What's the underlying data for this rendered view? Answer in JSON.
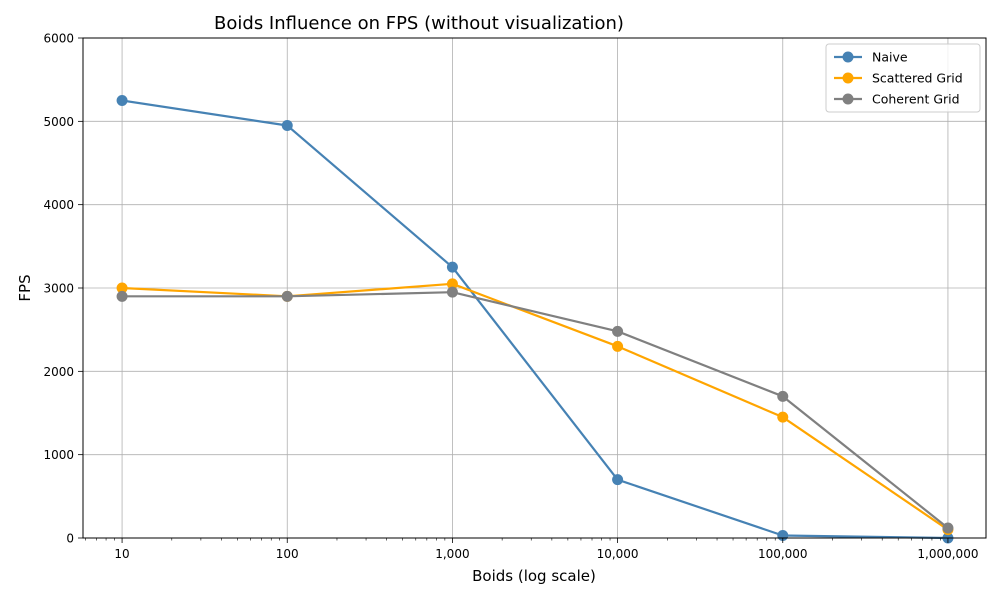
{
  "chart_data": {
    "type": "line",
    "title": "Boids Influence on FPS (without visualization)",
    "xlabel": "Boids (log scale)",
    "ylabel": "FPS",
    "x_scale": "log",
    "x": [
      10,
      100,
      1000,
      10000,
      100000,
      1000000
    ],
    "x_tick_labels": [
      "10",
      "100",
      "1,000",
      "10,000",
      "100,000",
      "1,000,000"
    ],
    "xlim": [
      5.8,
      1700000
    ],
    "ylim": [
      0,
      6000
    ],
    "y_ticks": [
      0,
      1000,
      2000,
      3000,
      4000,
      5000,
      6000
    ],
    "y_tick_labels": [
      "0",
      "1000",
      "2000",
      "3000",
      "4000",
      "5000",
      "6000"
    ],
    "grid": true,
    "legend_position": "top-right",
    "series": [
      {
        "name": "Naive",
        "color": "#4682b4",
        "values": [
          5250,
          4950,
          3250,
          700,
          30,
          0
        ]
      },
      {
        "name": "Scattered Grid",
        "color": "#ffa500",
        "values": [
          3000,
          2900,
          3050,
          2300,
          1450,
          100
        ]
      },
      {
        "name": "Coherent Grid",
        "color": "#808080",
        "values": [
          2900,
          2900,
          2950,
          2480,
          1700,
          120
        ]
      }
    ]
  }
}
